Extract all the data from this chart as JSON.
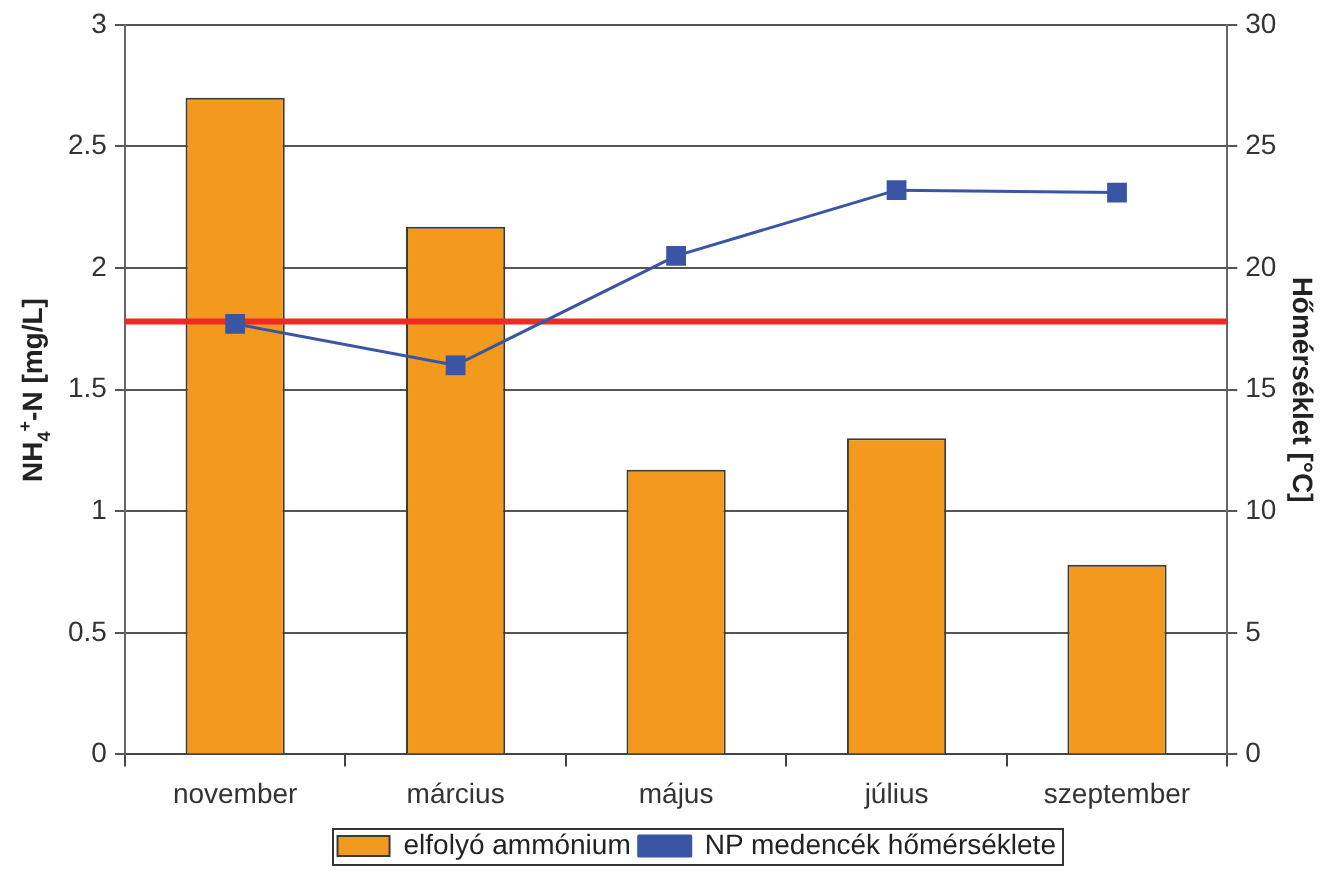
{
  "chart_data": {
    "type": "bar",
    "categories": [
      "november",
      "március",
      "május",
      "július",
      "szeptember"
    ],
    "series": [
      {
        "name": "elfolyó ammónium",
        "color": "#f39a1e",
        "values": [
          2.7,
          2.17,
          1.17,
          1.3,
          0.78
        ]
      },
      {
        "name": "NP medencék hőmérséklete",
        "type": "line",
        "axis": "y2",
        "color": "#3a55a4",
        "values": [
          17.7,
          16.0,
          20.5,
          23.2,
          23.1
        ]
      }
    ],
    "ylabel": "NH$_{4}$$^{+}$-N [mg/L]",
    "y2label": "Hőmérséklet [°C]",
    "ylim": [
      0,
      3
    ],
    "yticks": [
      0,
      0.5,
      1,
      1.5,
      2,
      2.5,
      3
    ],
    "y2lim": [
      0,
      30
    ],
    "y2ticks": [
      0,
      5,
      10,
      15,
      20,
      25,
      30
    ],
    "grid": "y",
    "legend": "bottom",
    "marker": "square",
    "line_style": "solid",
    "ref_lines": [
      {
        "axis": "y",
        "value": 1.78,
        "color": "#ee2a24"
      }
    ]
  }
}
